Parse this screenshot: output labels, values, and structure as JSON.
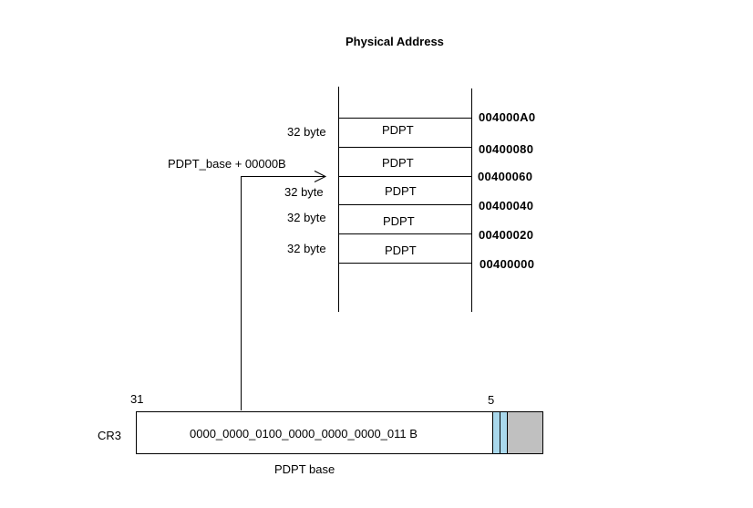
{
  "diagram": {
    "title": "Physical Address",
    "entries": [
      {
        "label": "PDPT",
        "size": "32 byte"
      },
      {
        "label": "PDPT",
        "size": ""
      },
      {
        "label": "PDPT",
        "size": "32 byte"
      },
      {
        "label": "PDPT",
        "size": "32 byte"
      },
      {
        "label": "PDPT",
        "size": "32 byte"
      }
    ],
    "addresses": [
      "004000A0",
      "00400080",
      "00400060",
      "00400040",
      "00400020",
      "00400000"
    ],
    "pointer_label": "PDPT_base + 00000B",
    "register": {
      "name": "CR3",
      "bit_high": "31",
      "bit_low": "5",
      "value": "0000_0000_0100_0000_0000_0000_011 B",
      "caption": "PDPT base"
    },
    "colors": {
      "line": "#000000",
      "reserved_bits": "#a9d8ec",
      "ignored_bits": "#c0c0c0"
    }
  }
}
